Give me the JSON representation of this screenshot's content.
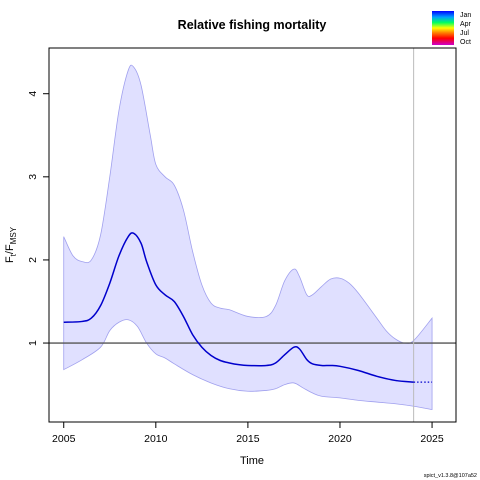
{
  "chart_data": {
    "type": "line",
    "title": "Relative fishing mortality",
    "xlabel": "Time",
    "ylabel_main": "F",
    "ylabel_sub1": "t",
    "ylabel_mid": "/F",
    "ylabel_sub2": "MSY",
    "xlim": [
      2004.2,
      2026.3
    ],
    "ylim": [
      0.05,
      4.55
    ],
    "x_ticks": [
      2005,
      2010,
      2015,
      2020,
      2025
    ],
    "y_ticks": [
      1,
      2,
      3,
      4
    ],
    "reference_line": 1,
    "vertical_line": 2024,
    "grid": false,
    "series": [
      {
        "role": "estimate",
        "color": "#0000cc",
        "points": [
          [
            2005,
            1.25
          ],
          [
            2006,
            1.26
          ],
          [
            2006.5,
            1.3
          ],
          [
            2007,
            1.45
          ],
          [
            2007.5,
            1.72
          ],
          [
            2008,
            2.05
          ],
          [
            2008.5,
            2.28
          ],
          [
            2008.8,
            2.32
          ],
          [
            2009.2,
            2.2
          ],
          [
            2009.5,
            1.98
          ],
          [
            2010,
            1.7
          ],
          [
            2010.5,
            1.58
          ],
          [
            2011,
            1.5
          ],
          [
            2011.5,
            1.32
          ],
          [
            2012,
            1.1
          ],
          [
            2012.5,
            0.95
          ],
          [
            2013,
            0.85
          ],
          [
            2013.5,
            0.79
          ],
          [
            2014,
            0.76
          ],
          [
            2014.5,
            0.74
          ],
          [
            2015,
            0.73
          ],
          [
            2016,
            0.73
          ],
          [
            2016.5,
            0.76
          ],
          [
            2017,
            0.86
          ],
          [
            2017.5,
            0.95
          ],
          [
            2017.8,
            0.93
          ],
          [
            2018.2,
            0.8
          ],
          [
            2018.5,
            0.75
          ],
          [
            2019,
            0.73
          ],
          [
            2019.5,
            0.73
          ],
          [
            2020,
            0.72
          ],
          [
            2021,
            0.67
          ],
          [
            2022,
            0.6
          ],
          [
            2023,
            0.55
          ],
          [
            2024,
            0.53
          ]
        ]
      },
      {
        "role": "forecast",
        "color": "#0000cc",
        "style": "dotted",
        "points": [
          [
            2024,
            0.53
          ],
          [
            2025,
            0.53
          ]
        ]
      }
    ],
    "ci": {
      "color": "#e0e0ff",
      "border": "#a0a0ee",
      "upper": [
        [
          2005,
          2.28
        ],
        [
          2005.5,
          2.05
        ],
        [
          2006,
          1.98
        ],
        [
          2006.5,
          2.0
        ],
        [
          2007,
          2.3
        ],
        [
          2007.5,
          3.0
        ],
        [
          2008,
          3.8
        ],
        [
          2008.5,
          4.28
        ],
        [
          2008.8,
          4.32
        ],
        [
          2009.2,
          4.1
        ],
        [
          2009.7,
          3.5
        ],
        [
          2010,
          3.15
        ],
        [
          2010.5,
          3.0
        ],
        [
          2011,
          2.9
        ],
        [
          2011.5,
          2.6
        ],
        [
          2012,
          2.1
        ],
        [
          2012.5,
          1.7
        ],
        [
          2013,
          1.48
        ],
        [
          2013.5,
          1.42
        ],
        [
          2014,
          1.4
        ],
        [
          2015,
          1.32
        ],
        [
          2016,
          1.32
        ],
        [
          2016.5,
          1.45
        ],
        [
          2017,
          1.75
        ],
        [
          2017.5,
          1.89
        ],
        [
          2017.8,
          1.8
        ],
        [
          2018.2,
          1.58
        ],
        [
          2018.5,
          1.58
        ],
        [
          2019,
          1.68
        ],
        [
          2019.5,
          1.77
        ],
        [
          2020,
          1.78
        ],
        [
          2020.5,
          1.72
        ],
        [
          2021,
          1.6
        ],
        [
          2022,
          1.3
        ],
        [
          2022.5,
          1.15
        ],
        [
          2023,
          1.05
        ],
        [
          2023.5,
          1.0
        ],
        [
          2024,
          1.03
        ],
        [
          2025,
          1.3
        ]
      ],
      "lower": [
        [
          2005,
          0.68
        ],
        [
          2006,
          0.8
        ],
        [
          2007,
          0.95
        ],
        [
          2007.5,
          1.15
        ],
        [
          2008,
          1.25
        ],
        [
          2008.5,
          1.28
        ],
        [
          2009,
          1.2
        ],
        [
          2009.5,
          1.0
        ],
        [
          2010,
          0.87
        ],
        [
          2010.5,
          0.82
        ],
        [
          2011,
          0.75
        ],
        [
          2012,
          0.62
        ],
        [
          2013,
          0.52
        ],
        [
          2014,
          0.45
        ],
        [
          2015,
          0.42
        ],
        [
          2016,
          0.43
        ],
        [
          2016.5,
          0.45
        ],
        [
          2017,
          0.5
        ],
        [
          2017.5,
          0.52
        ],
        [
          2018,
          0.46
        ],
        [
          2018.5,
          0.4
        ],
        [
          2019,
          0.36
        ],
        [
          2020,
          0.34
        ],
        [
          2021,
          0.31
        ],
        [
          2022,
          0.29
        ],
        [
          2023,
          0.27
        ],
        [
          2024,
          0.24
        ],
        [
          2025,
          0.2
        ]
      ]
    },
    "legend": {
      "placement": "top-right",
      "entries": [
        "Jan",
        "Apr",
        "Jul",
        "Oct"
      ]
    }
  },
  "footer": "spict_v1.3.8@107a52"
}
